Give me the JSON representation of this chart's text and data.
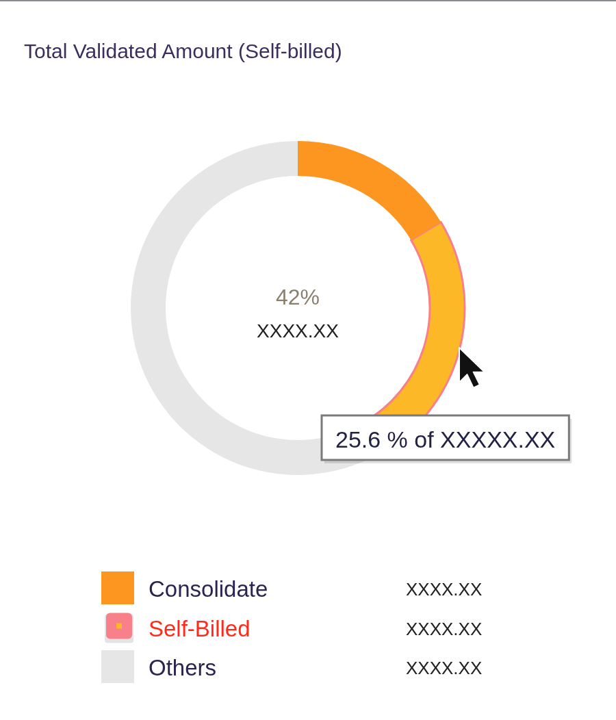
{
  "chart_data": {
    "type": "donut",
    "title": "Total Validated Amount (Self-billed)",
    "categories": [
      "Consolidate",
      "Self-Billed",
      "Others"
    ],
    "values": [
      16.4,
      25.6,
      58
    ],
    "colors": [
      "#fd9620",
      "#fdb827",
      "#e6e6e6"
    ],
    "value_labels": [
      "XXXX.XX",
      "XXXX.XX",
      "XXXX.XX"
    ],
    "annotations": [
      "42%",
      "XXXX.XX",
      {
        "text": "25.6 % of XXXXX.XX",
        "x": "Self-Billed"
      }
    ],
    "legend": "bottom"
  }
}
